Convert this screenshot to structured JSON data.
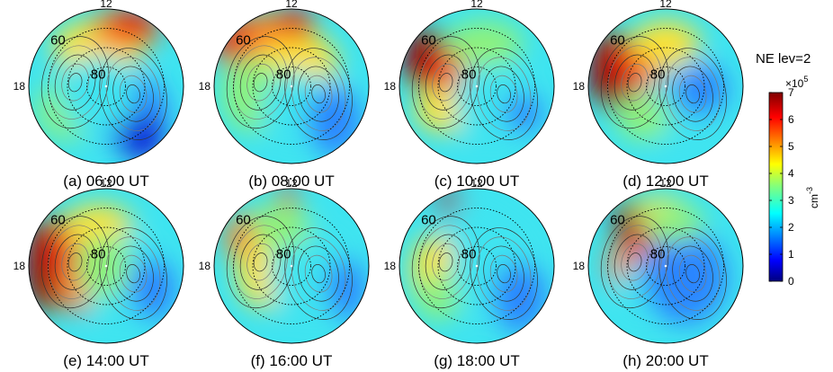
{
  "chart_data": {
    "type": "heatmap",
    "title": "NE lev=2",
    "colorbar": {
      "label": "cm",
      "label_exponent": "-3",
      "multiplier": "×10",
      "multiplier_exponent": "5",
      "range": [
        0,
        7
      ],
      "ticks": [
        "0",
        "1",
        "2",
        "3",
        "4",
        "5",
        "6",
        "7"
      ]
    },
    "projection": "polar",
    "local_time_labels": [
      "12",
      "18"
    ],
    "latitude_circles": [
      60,
      70,
      80
    ],
    "latitude_labels": [
      "60",
      "80"
    ],
    "panels": [
      {
        "caption": "(a) 06:00 UT",
        "hour": 6
      },
      {
        "caption": "(b) 08:00 UT",
        "hour": 8
      },
      {
        "caption": "(c) 10:00 UT",
        "hour": 10
      },
      {
        "caption": "(d) 12:00 UT",
        "hour": 12
      },
      {
        "caption": "(e) 14:00 UT",
        "hour": 14
      },
      {
        "caption": "(f) 16:00 UT",
        "hour": 16
      },
      {
        "caption": "(g) 18:00 UT",
        "hour": 18
      },
      {
        "caption": "(h) 20:00 UT",
        "hour": 20
      }
    ]
  }
}
